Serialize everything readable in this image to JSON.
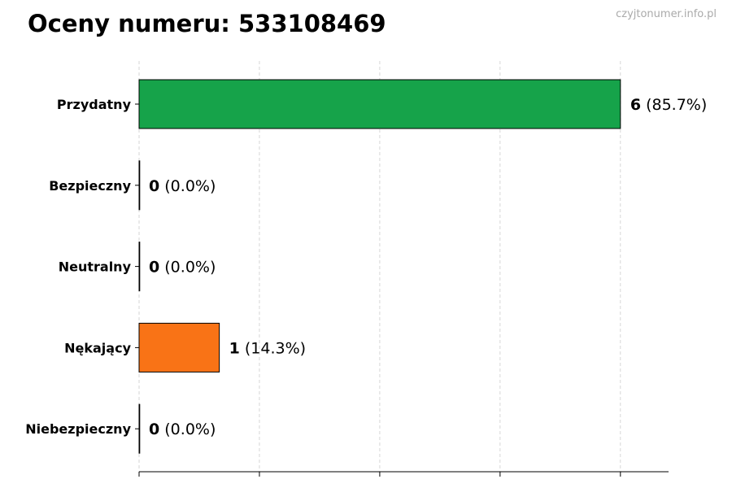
{
  "title": "Oceny numeru: 533108469",
  "watermark": "czyjtonumer.info.pl",
  "chart_data": {
    "type": "bar",
    "orientation": "horizontal",
    "title": "Oceny numeru: 533108469",
    "categories": [
      "Przydatny",
      "Bezpieczny",
      "Neutralny",
      "Nękający",
      "Niebezpieczny"
    ],
    "values": [
      6,
      0,
      0,
      1,
      0
    ],
    "value_labels": [
      "6",
      "0",
      "0",
      "1",
      "0"
    ],
    "percent_labels": [
      "(85.7%)",
      "(0.0%)",
      "(0.0%)",
      "(14.3%)",
      "(0.0%)"
    ],
    "colors": [
      "#16a34a",
      "#9ca3af",
      "#9ca3af",
      "#f97316",
      "#9ca3af"
    ],
    "xlim": [
      0,
      6.6
    ],
    "x_gridlines": [
      0,
      1.5,
      3,
      4.5,
      6
    ],
    "x_tick_labels_shown": false,
    "grid": "x dashed",
    "xlabel": "",
    "ylabel": ""
  }
}
